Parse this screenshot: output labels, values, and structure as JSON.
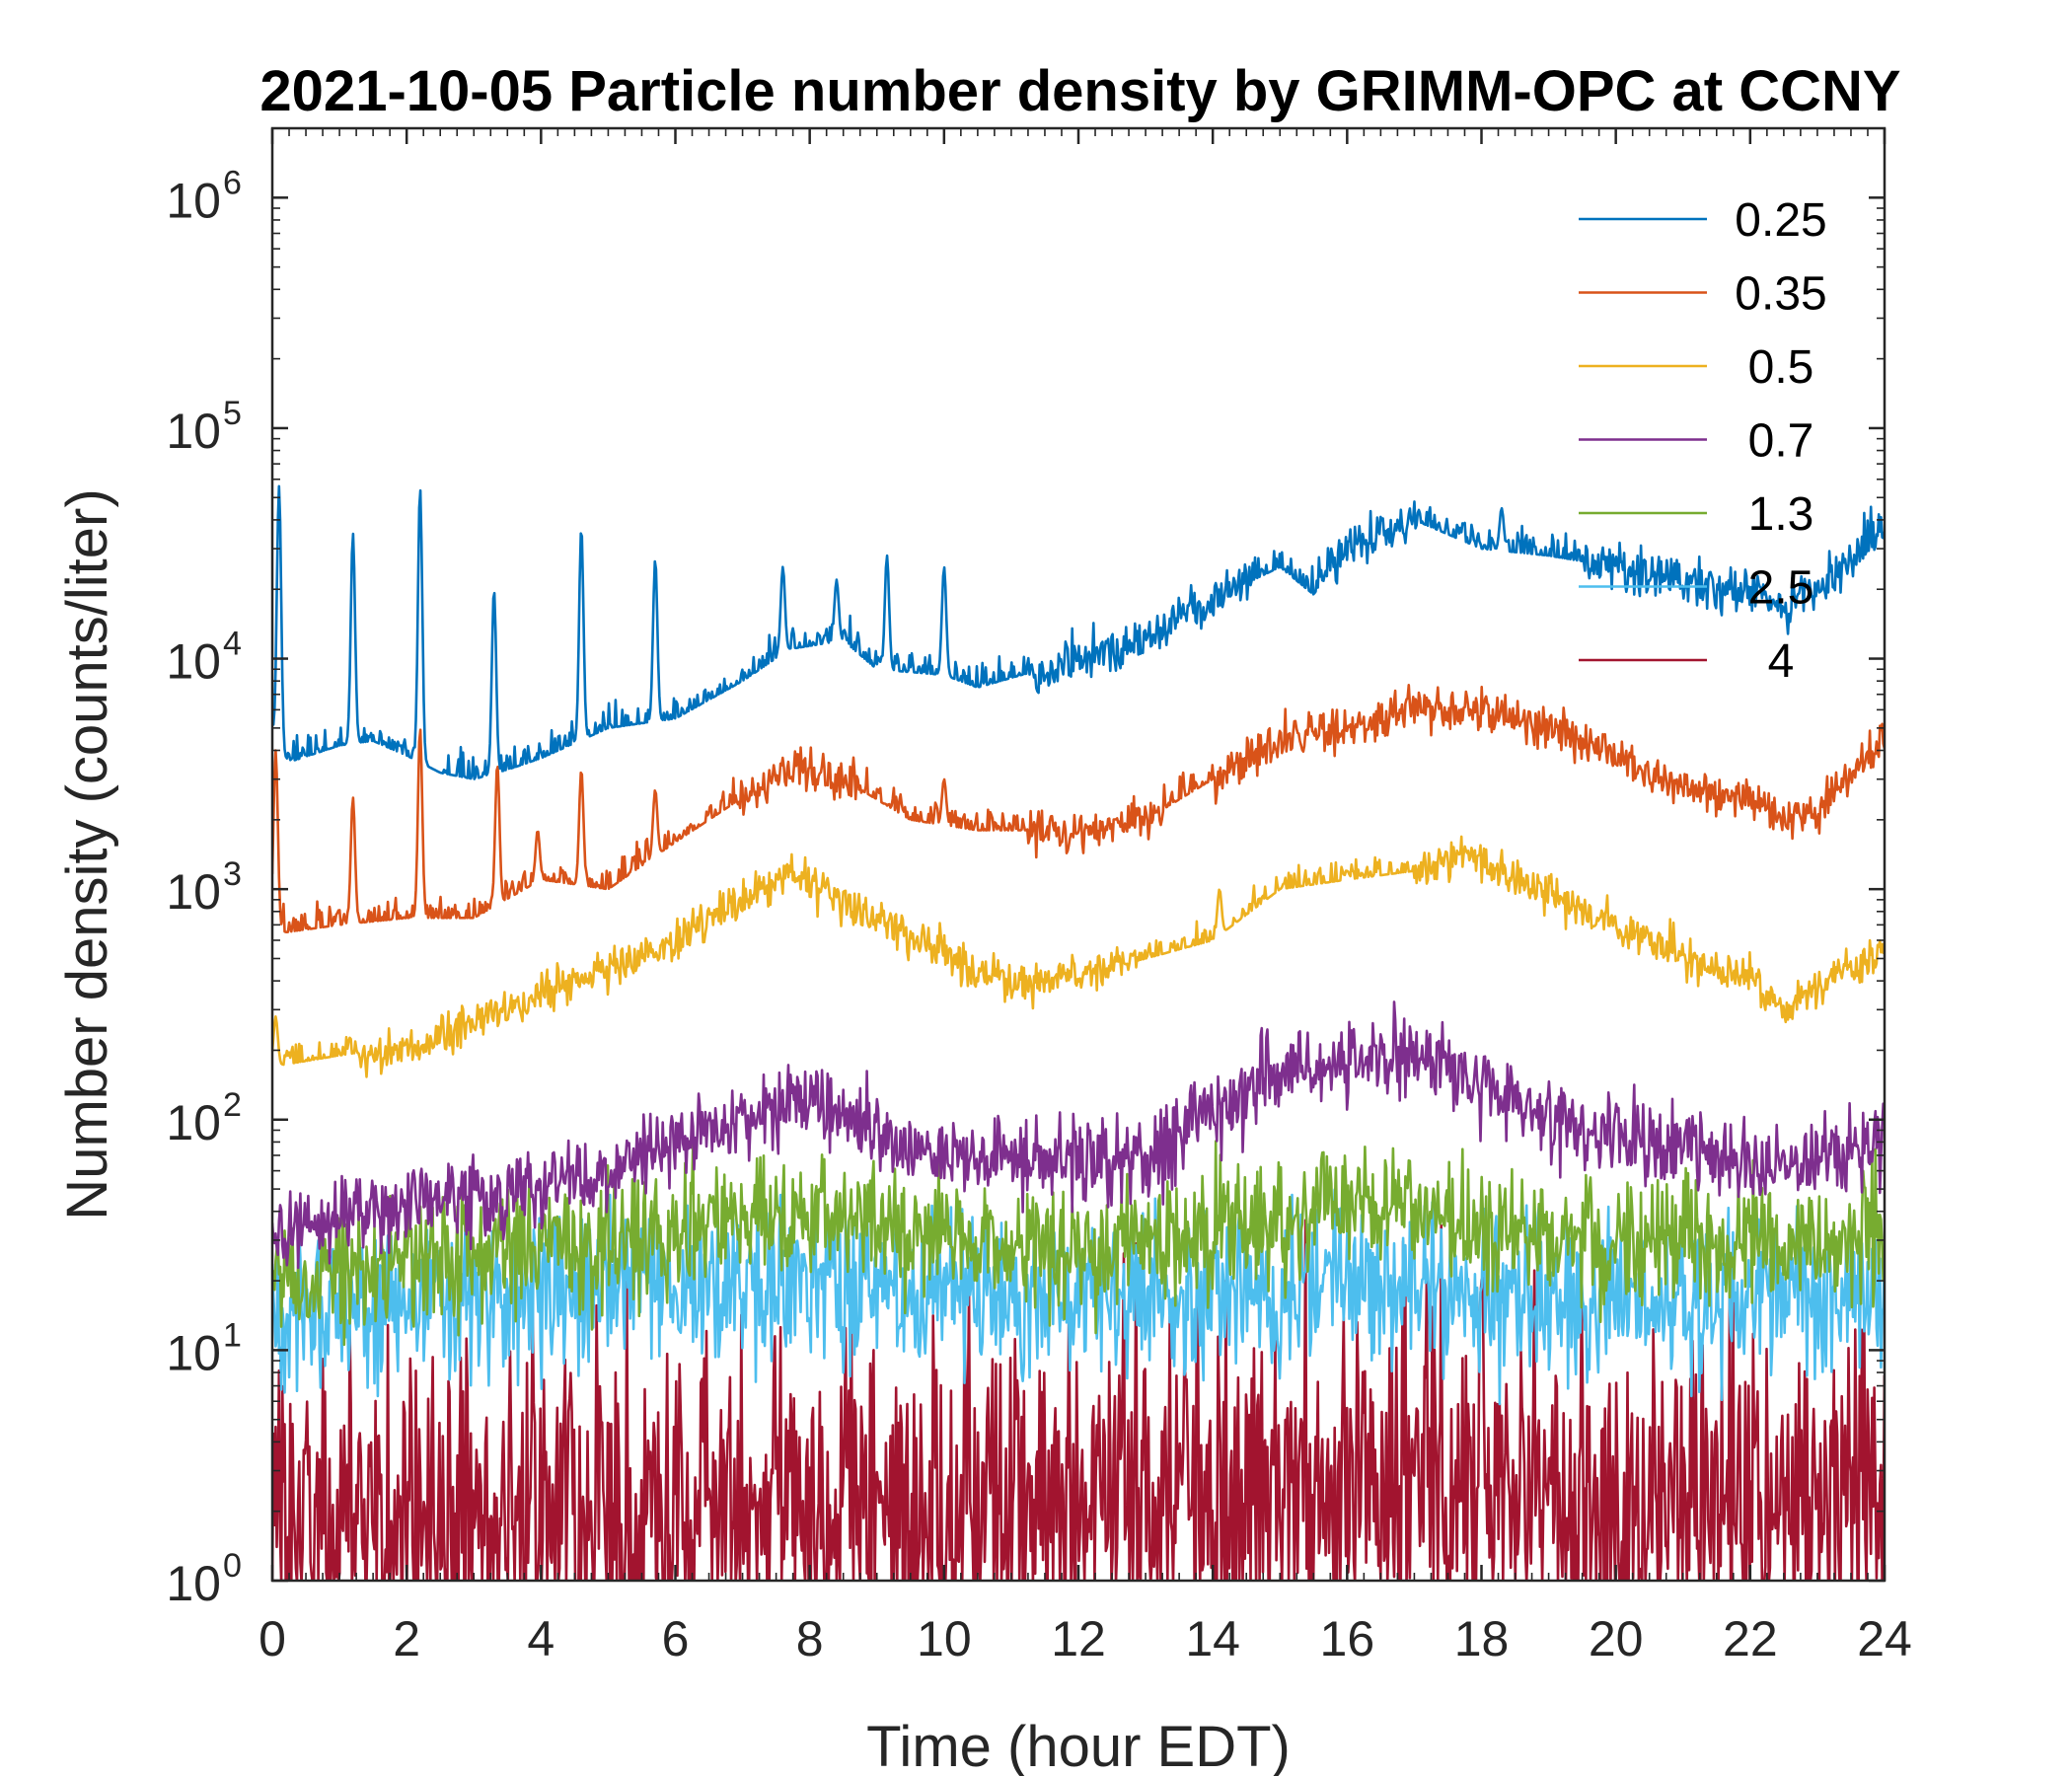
{
  "chart_data": {
    "type": "line",
    "title": "2021-10-05 Particle number density by GRIMM-OPC at CCNY",
    "xlabel": "Time (hour EDT)",
    "ylabel": "Number density (counts/liter)",
    "xlim": [
      0,
      24
    ],
    "ylim": [
      1,
      2000000
    ],
    "yscale": "log",
    "x_ticks": [
      "0",
      "2",
      "4",
      "6",
      "8",
      "10",
      "12",
      "14",
      "16",
      "18",
      "20",
      "22",
      "24"
    ],
    "y_ticks": [
      {
        "base": "10",
        "exp": "0",
        "value": 1
      },
      {
        "base": "10",
        "exp": "1",
        "value": 10
      },
      {
        "base": "10",
        "exp": "2",
        "value": 100
      },
      {
        "base": "10",
        "exp": "3",
        "value": 1000
      },
      {
        "base": "10",
        "exp": "4",
        "value": 10000
      },
      {
        "base": "10",
        "exp": "5",
        "value": 100000
      },
      {
        "base": "10",
        "exp": "6",
        "value": 1000000
      }
    ],
    "legend_position": "top-right",
    "grid": false,
    "sample_interval_hours": 0.0167,
    "series": [
      {
        "name": "0.25",
        "color": "#0072BD",
        "noise_log10": 0.05,
        "x": [
          0,
          0.1,
          0.3,
          1,
          1.5,
          2,
          2.5,
          3,
          3.5,
          4,
          5,
          6,
          7,
          7.7,
          8.5,
          9,
          10,
          10.5,
          12,
          13,
          14,
          15,
          15.5,
          16,
          17,
          18,
          19,
          20,
          21,
          22,
          22.5,
          23,
          24
        ],
        "values": [
          5000,
          3800,
          3600,
          4200,
          4400,
          3800,
          3200,
          3000,
          3300,
          3700,
          5000,
          5500,
          8000,
          11000,
          12000,
          9000,
          8500,
          7500,
          10000,
          12000,
          18000,
          25000,
          19000,
          30000,
          40000,
          30000,
          28000,
          25000,
          22000,
          20000,
          17000,
          20000,
          38000
        ],
        "spikes": [
          [
            0.1,
            56000
          ],
          [
            1.2,
            35000
          ],
          [
            2.2,
            55000
          ],
          [
            3.3,
            20000
          ],
          [
            4.6,
            37000
          ],
          [
            5.7,
            27000
          ],
          [
            7.6,
            25000
          ],
          [
            8.4,
            22000
          ],
          [
            9.15,
            28000
          ],
          [
            10.0,
            25000
          ],
          [
            18.3,
            45000
          ],
          [
            15.8,
            25000
          ]
        ]
      },
      {
        "name": "0.35",
        "color": "#D95319",
        "noise_log10": 0.045,
        "x": [
          0,
          0.2,
          1,
          2,
          3,
          4,
          5,
          6,
          7,
          7.8,
          8.5,
          9.5,
          10.5,
          12,
          13,
          14,
          15,
          16,
          17,
          18,
          19,
          20,
          21,
          22,
          22.5,
          23,
          24
        ],
        "values": [
          700,
          650,
          700,
          750,
          750,
          1100,
          1000,
          1600,
          2500,
          3300,
          3000,
          2000,
          1800,
          1800,
          2000,
          3000,
          4500,
          5000,
          6000,
          6000,
          5000,
          3800,
          2700,
          2500,
          2000,
          2200,
          4500
        ],
        "spikes": [
          [
            0.05,
            4000
          ],
          [
            1.2,
            2500
          ],
          [
            2.2,
            5000
          ],
          [
            3.35,
            3500
          ],
          [
            3.95,
            1800
          ],
          [
            4.6,
            3300
          ],
          [
            5.7,
            2700
          ],
          [
            10.0,
            3000
          ],
          [
            14.5,
            3000
          ]
        ]
      },
      {
        "name": "0.5",
        "color": "#EDB120",
        "noise_log10": 0.045,
        "x": [
          0,
          1,
          2,
          3,
          4,
          5,
          6,
          7,
          7.7,
          8.5,
          9.5,
          10.5,
          11,
          12,
          13,
          14,
          15,
          16,
          17,
          17.8,
          18.5,
          19.5,
          20.5,
          21.5,
          22,
          22.5,
          23,
          24
        ],
        "values": [
          170,
          190,
          210,
          260,
          350,
          450,
          600,
          900,
          1150,
          900,
          600,
          450,
          380,
          420,
          500,
          600,
          1000,
          1100,
          1200,
          1400,
          1100,
          800,
          600,
          450,
          420,
          300,
          380,
          550
        ],
        "spikes": [
          [
            0.05,
            280
          ],
          [
            14.1,
            1000
          ],
          [
            16.0,
            1200
          ]
        ]
      },
      {
        "name": "0.7",
        "color": "#7E2F8E",
        "noise_log10": 0.09,
        "x": [
          0,
          1,
          2,
          3,
          4,
          5,
          6,
          7,
          7.7,
          8.5,
          9.5,
          11,
          12,
          13,
          14,
          15,
          16,
          17,
          17.5,
          18.5,
          19.5,
          20.5,
          21.5,
          22.5,
          24
        ],
        "values": [
          30,
          40,
          42,
          45,
          50,
          60,
          80,
          100,
          120,
          110,
          75,
          70,
          65,
          65,
          110,
          160,
          180,
          190,
          170,
          120,
          90,
          80,
          70,
          60,
          80
        ],
        "spikes": []
      },
      {
        "name": "1.3",
        "color": "#77AC30",
        "noise_log10": 0.14,
        "x": [
          0,
          2,
          4,
          6,
          8,
          10,
          12,
          14,
          16,
          17,
          18,
          20,
          22,
          24
        ],
        "values": [
          20,
          24,
          28,
          33,
          40,
          30,
          28,
          30,
          42,
          45,
          35,
          30,
          28,
          32
        ],
        "spikes": []
      },
      {
        "name": "2.5",
        "color": "#4DBEEE",
        "noise_log10": 0.17,
        "x": [
          0,
          2,
          4,
          6,
          8,
          10,
          12,
          14,
          16,
          18,
          20,
          22,
          24
        ],
        "values": [
          14,
          16,
          18,
          19,
          20,
          18,
          17,
          17,
          20,
          19,
          17,
          16,
          18
        ],
        "spikes": []
      },
      {
        "name": "4",
        "color": "#A2142F",
        "noise_log10": 0.4,
        "x": [
          0,
          4,
          8,
          12,
          16,
          17,
          20,
          24
        ],
        "values": [
          1.6,
          1.8,
          2.2,
          2.2,
          2.6,
          2.8,
          2.2,
          2.0
        ],
        "spikes": []
      }
    ]
  }
}
